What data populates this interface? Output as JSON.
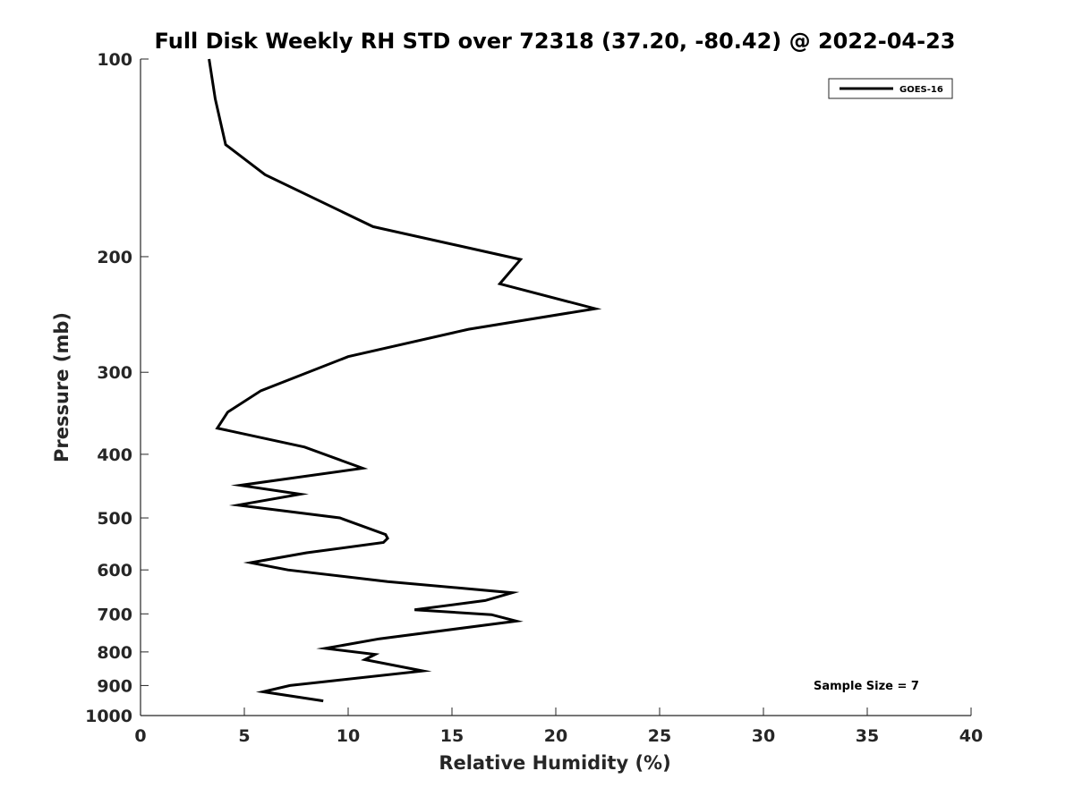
{
  "chart_data": {
    "type": "line",
    "title": "Full Disk Weekly RH STD over 72318 (37.20, -80.42) @ 2022-04-23",
    "xlabel": "Relative Humidity (%)",
    "ylabel": "Pressure (mb)",
    "xlim": [
      0,
      40
    ],
    "ylim": [
      100,
      1000
    ],
    "y_scale": "log",
    "y_reversed": true,
    "grid": false,
    "legend_position": "top-right",
    "x_ticks": [
      "0",
      "5",
      "10",
      "15",
      "20",
      "25",
      "30",
      "35",
      "40"
    ],
    "y_ticks": [
      "100",
      "200",
      "300",
      "400",
      "500",
      "600",
      "700",
      "800",
      "900",
      "1000"
    ],
    "series": [
      {
        "name": "GOES-16",
        "color": "#000000",
        "points": [
          {
            "x": 3.3,
            "p": 100
          },
          {
            "x": 3.6,
            "p": 115
          },
          {
            "x": 4.1,
            "p": 135
          },
          {
            "x": 6.0,
            "p": 150
          },
          {
            "x": 11.2,
            "p": 180
          },
          {
            "x": 18.3,
            "p": 202
          },
          {
            "x": 17.3,
            "p": 220
          },
          {
            "x": 21.9,
            "p": 240
          },
          {
            "x": 15.8,
            "p": 258
          },
          {
            "x": 10.0,
            "p": 284
          },
          {
            "x": 5.8,
            "p": 320
          },
          {
            "x": 4.2,
            "p": 345
          },
          {
            "x": 3.7,
            "p": 365
          },
          {
            "x": 7.9,
            "p": 390
          },
          {
            "x": 10.7,
            "p": 420
          },
          {
            "x": 4.8,
            "p": 446
          },
          {
            "x": 7.7,
            "p": 460
          },
          {
            "x": 4.7,
            "p": 478
          },
          {
            "x": 9.6,
            "p": 500
          },
          {
            "x": 11.8,
            "p": 530
          },
          {
            "x": 11.9,
            "p": 537
          },
          {
            "x": 11.7,
            "p": 545
          },
          {
            "x": 8.0,
            "p": 565
          },
          {
            "x": 5.3,
            "p": 585
          },
          {
            "x": 7.1,
            "p": 600
          },
          {
            "x": 11.9,
            "p": 625
          },
          {
            "x": 17.9,
            "p": 650
          },
          {
            "x": 16.6,
            "p": 668
          },
          {
            "x": 13.2,
            "p": 690
          },
          {
            "x": 16.9,
            "p": 702
          },
          {
            "x": 18.1,
            "p": 718
          },
          {
            "x": 11.5,
            "p": 764
          },
          {
            "x": 8.9,
            "p": 790
          },
          {
            "x": 11.3,
            "p": 807
          },
          {
            "x": 10.8,
            "p": 822
          },
          {
            "x": 13.6,
            "p": 855
          },
          {
            "x": 7.2,
            "p": 900
          },
          {
            "x": 5.9,
            "p": 920
          },
          {
            "x": 8.8,
            "p": 950
          }
        ]
      }
    ],
    "annotations": [
      "Sample Size = 7"
    ]
  }
}
